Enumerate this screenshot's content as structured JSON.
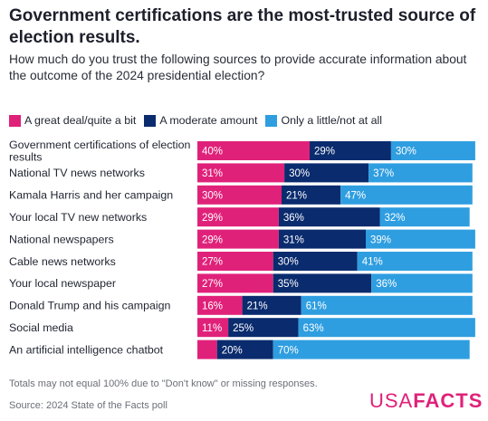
{
  "title": "Government certifications are the most-trusted source of election results.",
  "subtitle": "How much do you trust the following sources to provide accurate information about the outcome of the 2024 presidential election?",
  "note": "Totals may not equal 100% due to \"Don't know\" or missing responses.",
  "source": "Source: 2024 State of the Facts poll",
  "logo": {
    "part1": "USA",
    "part2": "FACTS",
    "color": "#e0217a"
  },
  "chart_data": {
    "type": "bar",
    "orientation": "horizontal",
    "stacked": true,
    "title": "Government certifications are the most-trusted source of election results.",
    "categories": [
      "Government certifications of election results",
      "National TV news networks",
      "Kamala Harris and her campaign",
      "Your local TV new networks",
      "National newspapers",
      "Cable news networks",
      "Your local newspaper",
      "Donald Trump and his campaign",
      "Social media",
      "An artificial intelligence chatbot"
    ],
    "category_lines": [
      [
        "Government certifications of election",
        "results"
      ],
      [
        "National TV news networks"
      ],
      [
        "Kamala Harris and her campaign"
      ],
      [
        "Your local TV new networks"
      ],
      [
        "National newspapers"
      ],
      [
        "Cable news networks"
      ],
      [
        "Your local newspaper"
      ],
      [
        "Donald Trump and his campaign"
      ],
      [
        "Social media"
      ],
      [
        "An artificial intelligence chatbot"
      ]
    ],
    "series": [
      {
        "name": "A great deal/quite a bit",
        "color": "#e0217a",
        "values": [
          40,
          31,
          30,
          29,
          29,
          27,
          27,
          16,
          11,
          7
        ],
        "labels": [
          "40%",
          "31%",
          "30%",
          "29%",
          "29%",
          "27%",
          "27%",
          "16%",
          "11%",
          ""
        ]
      },
      {
        "name": "A moderate amount",
        "color": "#0a2b6e",
        "values": [
          29,
          30,
          21,
          36,
          31,
          30,
          35,
          21,
          25,
          20
        ],
        "labels": [
          "29%",
          "30%",
          "21%",
          "36%",
          "31%",
          "30%",
          "35%",
          "21%",
          "25%",
          "20%"
        ]
      },
      {
        "name": "Only a little/not at all",
        "color": "#2f9ee0",
        "values": [
          30,
          37,
          47,
          32,
          39,
          41,
          36,
          61,
          63,
          70
        ],
        "labels": [
          "30%",
          "37%",
          "47%",
          "32%",
          "39%",
          "41%",
          "36%",
          "61%",
          "63%",
          "70%"
        ]
      }
    ],
    "xlim": [
      0,
      100
    ],
    "grid": false,
    "legend_position": "top-left",
    "units": "%"
  }
}
